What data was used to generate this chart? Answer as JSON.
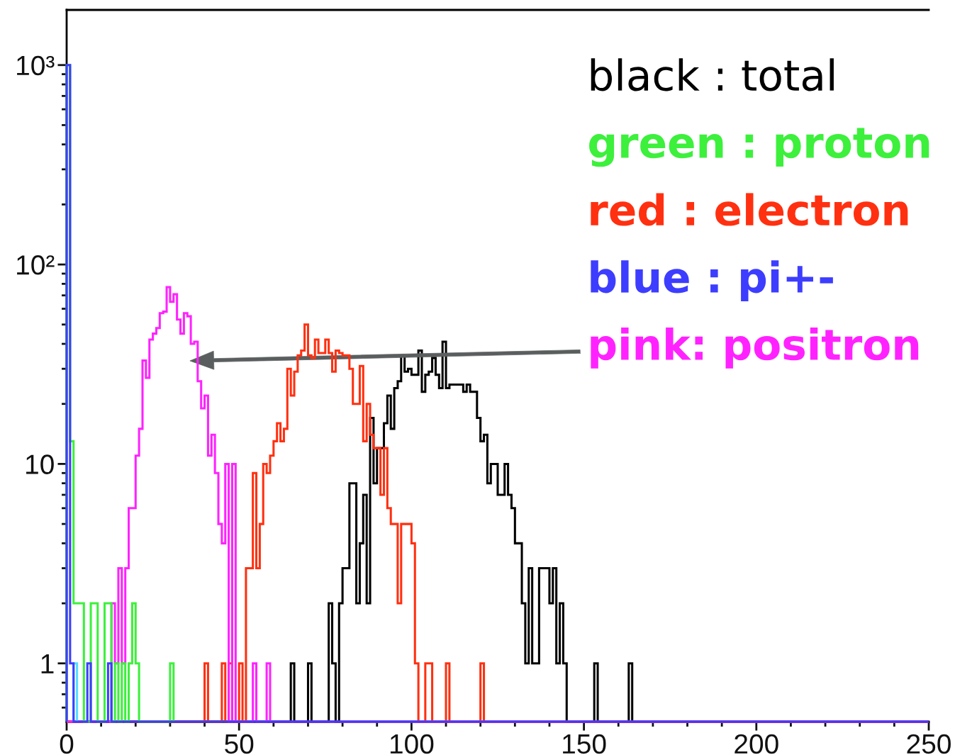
{
  "chart_data": {
    "type": "histogram",
    "log": true,
    "legend": "top right",
    "xlim": [
      0,
      250
    ],
    "ylim": [
      0.51,
      1890
    ],
    "xticks": [
      0,
      {
        "value": 10,
        "label": null
      },
      {
        "value": 20,
        "label": null
      },
      {
        "value": 30,
        "label": null
      },
      {
        "value": 40,
        "label": null
      },
      50,
      {
        "value": 60,
        "label": null
      },
      {
        "value": 70,
        "label": null
      },
      {
        "value": 80,
        "label": null
      },
      {
        "value": 90,
        "label": null
      },
      100,
      {
        "value": 110,
        "label": null
      },
      {
        "value": 120,
        "label": null
      },
      {
        "value": 130,
        "label": null
      },
      {
        "value": 140,
        "label": null
      },
      150,
      {
        "value": 160,
        "label": null
      },
      {
        "value": 170,
        "label": null
      },
      {
        "value": 180,
        "label": null
      },
      {
        "value": 190,
        "label": null
      },
      200,
      {
        "value": 210,
        "label": null
      },
      {
        "value": 220,
        "label": null
      },
      {
        "value": 230,
        "label": null
      },
      {
        "value": 240,
        "label": null
      },
      250
    ],
    "yticks": [
      {
        "value": 0.6,
        "label": null
      },
      {
        "value": 0.7,
        "label": null
      },
      {
        "value": 0.8,
        "label": null
      },
      {
        "value": 0.9,
        "label": null
      },
      1,
      {
        "value": 2,
        "label": null
      },
      {
        "value": 3,
        "label": null
      },
      {
        "value": 4,
        "label": null
      },
      {
        "value": 5,
        "label": null
      },
      {
        "value": 6,
        "label": null
      },
      {
        "value": 7,
        "label": null
      },
      {
        "value": 8,
        "label": null
      },
      {
        "value": 9,
        "label": null
      },
      10,
      {
        "value": 20,
        "label": null
      },
      {
        "value": 30,
        "label": null
      },
      {
        "value": 40,
        "label": null
      },
      {
        "value": 50,
        "label": null
      },
      {
        "value": 60,
        "label": null
      },
      {
        "value": 70,
        "label": null
      },
      {
        "value": 80,
        "label": null
      },
      {
        "value": 90,
        "label": null
      },
      {
        "value": 100,
        "label": "10²"
      },
      {
        "value": 200,
        "label": null
      },
      {
        "value": 300,
        "label": null
      },
      {
        "value": 400,
        "label": null
      },
      {
        "value": 500,
        "label": null
      },
      {
        "value": 600,
        "label": null
      },
      {
        "value": 700,
        "label": null
      },
      {
        "value": 800,
        "label": null
      },
      {
        "value": 900,
        "label": null
      },
      {
        "value": 1000,
        "label": "10³"
      }
    ],
    "bins": [
      0,
      1,
      2,
      3,
      4,
      5,
      6,
      7,
      8,
      9,
      10,
      11,
      12,
      13,
      14,
      15,
      16,
      17,
      18,
      19,
      20,
      21,
      22,
      23,
      24,
      25,
      26,
      27,
      28,
      29,
      30,
      31,
      32,
      33,
      34,
      35,
      36,
      37,
      38,
      39,
      40,
      41,
      42,
      43,
      44,
      45,
      46,
      47,
      48,
      49,
      50,
      51,
      52,
      53,
      54,
      55,
      56,
      57,
      58,
      59,
      60,
      61,
      62,
      63,
      64,
      65,
      66,
      67,
      68,
      69,
      70,
      71,
      72,
      73,
      74,
      75,
      76,
      77,
      78,
      79,
      80,
      81,
      82,
      83,
      84,
      85,
      86,
      87,
      88,
      89,
      90,
      91,
      92,
      93,
      94,
      95,
      96,
      97,
      98,
      99,
      100,
      101,
      102,
      103,
      104,
      105,
      106,
      107,
      108,
      109,
      110,
      111,
      112,
      113,
      114,
      115,
      116,
      117,
      118,
      119,
      120,
      121,
      122,
      123,
      124,
      125,
      126,
      127,
      128,
      129,
      130,
      131,
      132,
      133,
      134,
      135,
      136,
      137,
      138,
      139,
      140,
      141,
      142,
      143,
      144,
      145,
      146,
      147,
      148,
      149,
      150,
      151,
      152,
      153,
      154,
      155,
      156,
      157,
      158,
      159,
      160,
      161,
      162,
      163,
      164,
      165,
      166,
      167,
      168,
      169,
      170,
      171,
      172,
      173,
      174,
      175,
      176,
      177,
      178,
      179,
      180,
      181,
      182,
      183,
      184,
      185,
      186,
      187,
      188,
      189,
      190,
      191,
      192,
      193,
      194,
      195,
      196,
      197,
      198,
      199,
      200,
      201,
      202,
      203,
      204,
      205,
      206,
      207,
      208,
      209,
      210,
      211,
      212,
      213,
      214,
      215,
      216,
      217,
      218,
      219,
      220,
      221,
      222,
      223,
      224,
      225,
      226,
      227,
      228,
      229,
      230,
      231,
      232,
      233,
      234,
      235,
      236,
      237,
      238,
      239,
      240,
      241,
      242,
      243,
      244,
      245,
      246,
      247,
      248,
      249,
      250
    ],
    "series": [
      {
        "name": "black : total",
        "color": "#000000",
        "values": [
          null,
          null,
          null,
          null,
          null,
          null,
          null,
          null,
          null,
          null,
          null,
          null,
          null,
          null,
          null,
          null,
          null,
          null,
          null,
          null,
          null,
          null,
          null,
          null,
          null,
          null,
          null,
          null,
          null,
          null,
          null,
          null,
          null,
          null,
          null,
          null,
          null,
          null,
          null,
          null,
          null,
          null,
          null,
          null,
          null,
          null,
          null,
          null,
          null,
          null,
          null,
          null,
          null,
          null,
          null,
          null,
          null,
          null,
          null,
          null,
          null,
          null,
          null,
          null,
          null,
          1,
          null,
          null,
          null,
          null,
          1,
          null,
          null,
          null,
          null,
          null,
          2,
          1,
          null,
          2,
          3,
          3,
          8,
          8,
          2,
          4,
          7,
          2,
          17,
          8,
          12,
          12,
          16,
          22,
          15,
          24,
          26,
          35,
          29,
          30,
          28,
          28,
          37,
          23,
          28,
          29,
          34,
          28,
          24,
          41,
          24,
          25,
          25,
          25,
          25,
          23,
          25,
          23,
          23,
          17,
          13,
          14,
          8,
          10,
          10,
          7,
          7,
          10,
          7,
          6,
          4,
          4,
          2,
          1,
          3,
          1,
          1,
          3,
          3,
          3,
          2,
          3,
          1,
          2,
          1,
          null,
          null,
          null,
          null,
          null,
          null,
          null,
          null,
          1,
          null,
          null,
          null,
          null,
          null,
          null,
          null,
          null,
          null,
          1,
          null,
          null,
          null,
          null,
          null,
          null,
          null,
          null,
          null,
          null,
          null,
          null,
          null,
          null,
          null,
          null,
          null,
          null,
          null,
          null,
          null,
          null,
          null,
          null,
          null,
          null,
          null,
          null,
          null,
          null,
          null,
          null,
          null,
          null,
          null,
          null,
          null,
          null,
          null,
          null,
          null,
          null,
          null,
          null,
          null,
          null,
          null,
          null,
          null,
          null,
          null,
          null,
          null,
          null,
          null,
          null,
          null,
          null,
          null,
          null,
          null,
          null,
          null,
          null,
          null,
          null,
          null,
          null,
          null,
          null,
          null,
          null,
          null,
          null,
          null,
          null,
          null,
          null,
          null,
          null,
          null,
          null,
          null,
          null,
          null,
          null
        ]
      },
      {
        "name": "green : proton",
        "color": "#3cf03c",
        "bins": [
          0,
          1,
          2,
          3,
          4,
          5,
          6,
          7,
          8,
          9,
          10,
          11,
          12,
          13,
          14,
          15,
          16,
          17,
          18,
          19,
          20,
          21,
          22,
          23,
          24,
          25,
          26,
          27,
          28,
          29,
          30,
          31
        ],
        "values": [
          1000,
          13,
          2,
          2,
          2,
          null,
          null,
          2,
          2,
          null,
          null,
          2,
          2,
          null,
          1,
          null,
          1,
          null,
          1,
          2,
          1,
          null,
          null,
          null,
          null,
          null,
          null,
          null,
          null,
          null,
          1
        ]
      },
      {
        "name": "red : electron",
        "color": "#ff3010",
        "values": [
          null,
          null,
          null,
          null,
          null,
          null,
          null,
          null,
          null,
          null,
          null,
          null,
          null,
          null,
          null,
          null,
          null,
          null,
          null,
          null,
          null,
          null,
          null,
          null,
          null,
          null,
          null,
          null,
          null,
          null,
          null,
          null,
          null,
          null,
          null,
          null,
          null,
          null,
          null,
          null,
          1,
          null,
          null,
          null,
          null,
          1,
          null,
          1,
          null,
          null,
          1,
          null,
          3,
          3,
          9,
          3,
          5,
          10,
          9,
          11,
          13,
          16,
          13,
          15,
          30,
          22,
          29,
          35,
          37,
          50,
          35,
          34,
          42,
          36,
          36,
          42,
          36,
          29,
          37,
          36,
          35,
          35,
          30,
          20,
          20,
          31,
          13,
          20,
          14,
          12,
          12,
          7,
          12,
          6,
          5,
          5,
          2,
          5,
          5,
          5,
          4,
          1,
          null,
          null,
          1,
          1,
          null,
          null,
          null,
          null,
          1,
          null,
          null,
          null,
          null,
          null,
          null,
          null,
          null,
          null,
          1,
          null,
          null,
          null,
          null,
          null,
          null,
          null,
          null,
          null,
          null,
          null,
          null,
          null,
          null,
          null,
          null,
          null,
          null,
          null,
          null,
          null,
          null,
          null,
          null,
          null,
          null,
          null,
          null,
          null,
          null,
          null,
          null,
          null,
          null,
          null,
          null,
          null,
          null,
          null,
          null,
          null,
          null,
          null,
          null,
          null,
          null,
          null,
          null,
          null,
          null,
          null,
          null,
          null,
          null,
          null,
          null,
          null,
          null,
          null,
          null,
          null,
          null,
          null,
          null,
          null,
          null,
          null,
          null,
          null,
          null,
          null,
          null,
          null,
          null,
          null,
          null,
          null,
          null,
          null,
          null,
          null,
          null,
          null,
          null,
          null,
          null,
          null,
          null,
          null,
          null,
          null,
          null,
          null,
          null,
          null,
          null,
          null,
          null,
          null,
          null,
          null,
          null,
          null,
          null,
          null,
          null,
          null,
          null,
          null,
          null,
          null,
          null,
          null,
          null,
          null,
          null,
          null,
          null,
          null,
          null,
          null,
          null,
          null,
          null,
          null,
          null,
          null,
          null,
          null
        ]
      },
      {
        "name": "blue : pi+-",
        "color": "#3d3dff",
        "values": [
          1000,
          1,
          null,
          null,
          null,
          null,
          1,
          null,
          null,
          null,
          null,
          null,
          1,
          null,
          null,
          null,
          null,
          null,
          null,
          null,
          null,
          null,
          null,
          null,
          null,
          null,
          null,
          null,
          null,
          null,
          null,
          null,
          null,
          null,
          null,
          null,
          null,
          null,
          null,
          null,
          null,
          null,
          null,
          null,
          null,
          null,
          null,
          null,
          null,
          null,
          null,
          null,
          null,
          null,
          null,
          null,
          null,
          null,
          null,
          null,
          null,
          null,
          null,
          null,
          null,
          null,
          null,
          null,
          null,
          null,
          null,
          null,
          null,
          null,
          null,
          null,
          null,
          null,
          null,
          null,
          null,
          null,
          null,
          null,
          null,
          null,
          null,
          null,
          null,
          null,
          null,
          null,
          null,
          null,
          null,
          null,
          null,
          null,
          null,
          null,
          null,
          null,
          null,
          null,
          null,
          null,
          null,
          null,
          null,
          null,
          null,
          null,
          null,
          null,
          null,
          null,
          null,
          null,
          null,
          null,
          null,
          null,
          null,
          null,
          null,
          null,
          null,
          null,
          null,
          null,
          null,
          null,
          null,
          null,
          null,
          null,
          null,
          null,
          null,
          null,
          null,
          null,
          null,
          null,
          null,
          null,
          null,
          null,
          null,
          null,
          null,
          null,
          null,
          null,
          null,
          null,
          null,
          null,
          null,
          null,
          null,
          null,
          null,
          null,
          null,
          null,
          null,
          null,
          null,
          null,
          null,
          null,
          null,
          null,
          null,
          null,
          null,
          null,
          null,
          null,
          null,
          null,
          null,
          null,
          null,
          null,
          null,
          null,
          null,
          null,
          null,
          null,
          null,
          null,
          null,
          null,
          null,
          null,
          null,
          null,
          null,
          null,
          null,
          null,
          null,
          null,
          null,
          null,
          null,
          null,
          null,
          null,
          null,
          null,
          null,
          null,
          null,
          null,
          null,
          null,
          null,
          null,
          null,
          null,
          null,
          null,
          null,
          null,
          null,
          null,
          null,
          null,
          null,
          null,
          null,
          null,
          null,
          null,
          null,
          null,
          null,
          null,
          null,
          null,
          null,
          null,
          null,
          null,
          null,
          null
        ]
      },
      {
        "name": "pink: positron",
        "color": "#ff22ff",
        "values": [
          null,
          null,
          null,
          null,
          null,
          null,
          null,
          null,
          null,
          null,
          null,
          null,
          null,
          2,
          1,
          3,
          1,
          3,
          6,
          6,
          11,
          15,
          33,
          27,
          42,
          45,
          48,
          57,
          58,
          77,
          65,
          71,
          53,
          45,
          57,
          55,
          40,
          41,
          26,
          19,
          22,
          11,
          14,
          9,
          5,
          4,
          10,
          null,
          10,
          null,
          null,
          null,
          null,
          null,
          1,
          null,
          null,
          null,
          1,
          null,
          null,
          null,
          null,
          null,
          null,
          null,
          null,
          null,
          null,
          null,
          null,
          null,
          null,
          null,
          null,
          null,
          null,
          null,
          null,
          null,
          null,
          null,
          null,
          null,
          null,
          null,
          null,
          null,
          null,
          null,
          null,
          null,
          null,
          null,
          null,
          null,
          null,
          null,
          null,
          null,
          null,
          null,
          null,
          null,
          null,
          null,
          null,
          null,
          null,
          null,
          null,
          null,
          null,
          null,
          null,
          null,
          null,
          null,
          null,
          null,
          null,
          null,
          null,
          null,
          null,
          null,
          null,
          null,
          null,
          null,
          null,
          null,
          null,
          null,
          null,
          null,
          null,
          null,
          null,
          null,
          null,
          null,
          null,
          null,
          null,
          null,
          null,
          null,
          null,
          null,
          null,
          null,
          null,
          null,
          null,
          null,
          null,
          null,
          null,
          null,
          null,
          null,
          null,
          null,
          null,
          null,
          null,
          null,
          null,
          null,
          null,
          null,
          null,
          null,
          null,
          null,
          null,
          null,
          null,
          null,
          null,
          null,
          null,
          null,
          null,
          null,
          null,
          null,
          null,
          null,
          null,
          null,
          null,
          null,
          null,
          null,
          null,
          null,
          null,
          null,
          null,
          null,
          null,
          null,
          null,
          null,
          null,
          null,
          null,
          null,
          null,
          null,
          null,
          null,
          null,
          null,
          null,
          null,
          null,
          null,
          null,
          null,
          null,
          null,
          null,
          null,
          null,
          null,
          null,
          null,
          null,
          null,
          null,
          null,
          null,
          null,
          null,
          null,
          null,
          null,
          null,
          null,
          null,
          null,
          null,
          null,
          null,
          null,
          null,
          null
        ]
      },
      {
        "color": "#55ddff",
        "bins": [
          2,
          3
        ],
        "values": [
          1
        ]
      }
    ]
  }
}
